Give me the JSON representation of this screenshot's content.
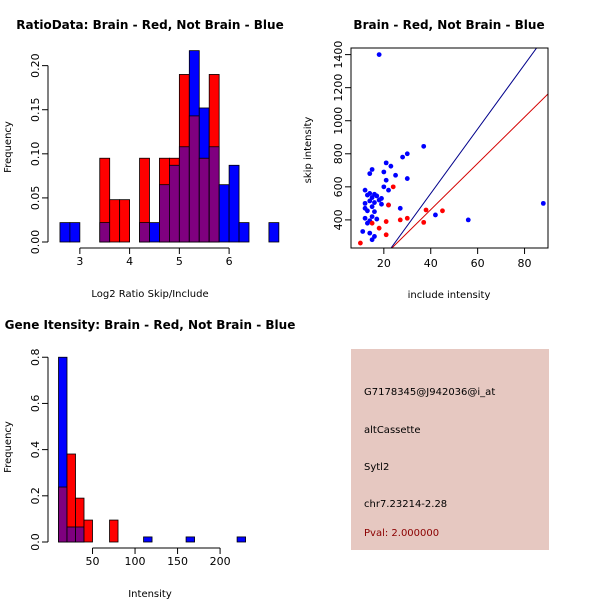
{
  "colors": {
    "brain": "#ff0000",
    "not_brain": "#0000ff",
    "overlap": "#7f007f",
    "info_bg": "#e6c8c1",
    "pval_text": "#8b0000"
  },
  "chart_data": [
    {
      "type": "histogram",
      "id": "ratio",
      "title": "RatioData: Brain - Red, Not Brain - Blue",
      "xlabel": "Log2 Ratio Skip/Include",
      "ylabel": "Frequency",
      "xlim": [
        2.4,
        6.4
      ],
      "ylim": [
        0,
        0.22
      ],
      "xticks": [
        3,
        4,
        5,
        6
      ],
      "yticks": [
        "0.00",
        "0.05",
        "0.10",
        "0.15",
        "0.20"
      ],
      "bin_start": 2.6,
      "bin_width": 0.2,
      "series": [
        {
          "name": "Not Brain",
          "values": [
            0.022,
            0.022,
            0,
            0,
            0.022,
            0,
            0,
            0,
            0.022,
            0.022,
            0.065,
            0.087,
            0.108,
            0.217,
            0.152,
            0.108,
            0.065,
            0.087,
            0.022,
            0,
            0,
            0.022
          ]
        },
        {
          "name": "Brain",
          "values": [
            0,
            0,
            0,
            0,
            0.095,
            0.048,
            0.048,
            0,
            0.095,
            0,
            0.095,
            0.095,
            0.19,
            0.143,
            0.095,
            0.19,
            0,
            0,
            0,
            0,
            0,
            0
          ]
        }
      ]
    },
    {
      "type": "scatter",
      "id": "intensity_scatter",
      "title": "Brain - Red, Not Brain - Blue",
      "xlabel": "include intensity",
      "ylabel": "skip intensity",
      "xlim": [
        6,
        90
      ],
      "ylim": [
        230,
        1440
      ],
      "xticks": [
        20,
        40,
        60,
        80
      ],
      "yticks": [
        400,
        600,
        800,
        1000,
        1200,
        1400
      ],
      "series": [
        {
          "name": "Not Brain",
          "points": [
            [
              18,
              1400
            ],
            [
              37,
              845
            ],
            [
              30,
              800
            ],
            [
              28,
              780
            ],
            [
              21,
              745
            ],
            [
              23,
              725
            ],
            [
              15,
              705
            ],
            [
              20,
              690
            ],
            [
              14,
              680
            ],
            [
              25,
              670
            ],
            [
              21,
              640
            ],
            [
              30,
              650
            ],
            [
              20,
              600
            ],
            [
              12,
              580
            ],
            [
              22,
              580
            ],
            [
              14,
              560
            ],
            [
              16,
              555
            ],
            [
              13,
              550
            ],
            [
              17,
              545
            ],
            [
              15,
              535
            ],
            [
              19,
              530
            ],
            [
              18,
              520
            ],
            [
              14,
              515
            ],
            [
              16,
              505
            ],
            [
              12,
              500
            ],
            [
              19,
              495
            ],
            [
              22,
              490
            ],
            [
              15,
              480
            ],
            [
              12,
              470
            ],
            [
              13,
              455
            ],
            [
              16,
              450
            ],
            [
              27,
              470
            ],
            [
              15,
              420
            ],
            [
              12,
              410
            ],
            [
              17,
              405
            ],
            [
              14,
              395
            ],
            [
              42,
              430
            ],
            [
              56,
              400
            ],
            [
              13,
              380
            ],
            [
              11,
              330
            ],
            [
              14,
              320
            ],
            [
              16,
              300
            ],
            [
              15,
              280
            ],
            [
              88,
              500
            ]
          ]
        },
        {
          "name": "Brain",
          "points": [
            [
              24,
              600
            ],
            [
              22,
              490
            ],
            [
              38,
              460
            ],
            [
              45,
              455
            ],
            [
              30,
              410
            ],
            [
              27,
              400
            ],
            [
              21,
              390
            ],
            [
              15,
              380
            ],
            [
              37,
              385
            ],
            [
              18,
              350
            ],
            [
              21,
              310
            ],
            [
              10,
              260
            ]
          ]
        }
      ],
      "fit_lines": [
        {
          "name": "Not Brain",
          "slope": 19.5,
          "intercept": -220
        },
        {
          "name": "Brain",
          "slope": 14.0,
          "intercept": -98
        }
      ]
    },
    {
      "type": "histogram",
      "id": "gene_intensity",
      "title": "Gene Itensity: Brain - Red, Not Brain - Blue",
      "xlabel": "Intensity",
      "ylabel": "Frequency",
      "xlim": [
        0,
        234
      ],
      "ylim": [
        0,
        0.84
      ],
      "xticks": [
        50,
        100,
        150,
        200
      ],
      "yticks": [
        "0.0",
        "0.2",
        "0.4",
        "0.6",
        "0.8"
      ],
      "bin_start": 10,
      "bin_width": 10,
      "series": [
        {
          "name": "Not Brain",
          "values": [
            0.8,
            0.065,
            0.065,
            0,
            0,
            0,
            0,
            0,
            0,
            0,
            0.022,
            0,
            0,
            0,
            0,
            0.022,
            0,
            0,
            0,
            0,
            0,
            0.022
          ]
        },
        {
          "name": "Brain",
          "values": [
            0.238,
            0.381,
            0.19,
            0.095,
            0,
            0,
            0.095,
            0,
            0,
            0,
            0,
            0,
            0,
            0,
            0,
            0,
            0,
            0,
            0,
            0,
            0,
            0
          ]
        }
      ]
    }
  ],
  "info_panel": {
    "probe_id": "G7178345@J942036@i_at",
    "event_type": "altCassette",
    "gene": "Sytl2",
    "location": "chr7.23214-2.28",
    "pval": "Pval: 2.000000"
  }
}
